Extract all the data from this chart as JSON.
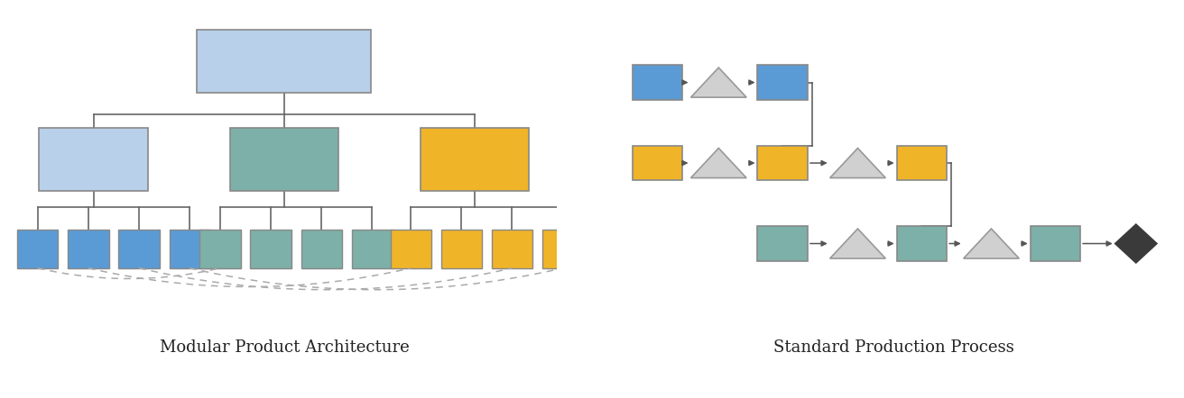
{
  "fig_width": 13.12,
  "fig_height": 4.42,
  "bg_color": "#ffffff",
  "label_left": "Modular Product Architecture",
  "label_right": "Standard Production Process",
  "label_fontsize": 13,
  "colors": {
    "blue_light": "#b8d0ea",
    "blue": "#5b9bd5",
    "teal": "#7db0a8",
    "yellow": "#f0b429",
    "gray_edge": "#888888",
    "triangle_fill": "#d0d0d0",
    "triangle_edge": "#999999",
    "diamond_fill": "#3a3a3a",
    "line_color": "#666666",
    "dash_color": "#aaaaaa"
  }
}
